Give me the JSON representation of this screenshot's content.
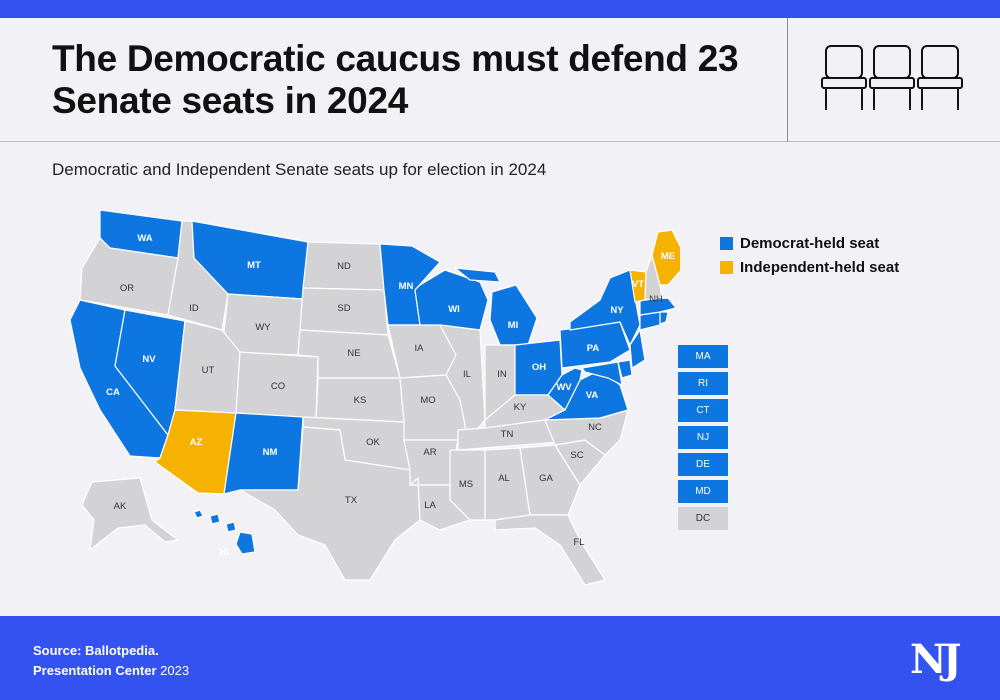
{
  "header": {
    "title": "The Democratic caucus must defend 23 Senate seats in 2024",
    "seats_icon": "chairs-icon"
  },
  "subtitle": "Democratic and Independent Senate seats up for election in 2024",
  "colors": {
    "democrat": "#0e76e0",
    "independent": "#f6b200",
    "none": "#d3d3d5",
    "border": "#ffffff",
    "accent": "#3452f0"
  },
  "legend": [
    {
      "label": "Democrat-held seat",
      "color": "#0e76e0"
    },
    {
      "label": "Independent-held seat",
      "color": "#f6b200"
    }
  ],
  "states": [
    {
      "abbr": "WA",
      "status": "democrat"
    },
    {
      "abbr": "OR",
      "status": "none"
    },
    {
      "abbr": "CA",
      "status": "democrat"
    },
    {
      "abbr": "ID",
      "status": "none"
    },
    {
      "abbr": "NV",
      "status": "democrat"
    },
    {
      "abbr": "MT",
      "status": "democrat"
    },
    {
      "abbr": "WY",
      "status": "none"
    },
    {
      "abbr": "UT",
      "status": "none"
    },
    {
      "abbr": "AZ",
      "status": "independent"
    },
    {
      "abbr": "CO",
      "status": "none"
    },
    {
      "abbr": "NM",
      "status": "democrat"
    },
    {
      "abbr": "ND",
      "status": "none"
    },
    {
      "abbr": "SD",
      "status": "none"
    },
    {
      "abbr": "NE",
      "status": "none"
    },
    {
      "abbr": "KS",
      "status": "none"
    },
    {
      "abbr": "OK",
      "status": "none"
    },
    {
      "abbr": "TX",
      "status": "none"
    },
    {
      "abbr": "MN",
      "status": "democrat"
    },
    {
      "abbr": "IA",
      "status": "none"
    },
    {
      "abbr": "MO",
      "status": "none"
    },
    {
      "abbr": "AR",
      "status": "none"
    },
    {
      "abbr": "LA",
      "status": "none"
    },
    {
      "abbr": "WI",
      "status": "democrat"
    },
    {
      "abbr": "IL",
      "status": "none"
    },
    {
      "abbr": "MI",
      "status": "democrat"
    },
    {
      "abbr": "IN",
      "status": "none"
    },
    {
      "abbr": "OH",
      "status": "democrat"
    },
    {
      "abbr": "KY",
      "status": "none"
    },
    {
      "abbr": "TN",
      "status": "none"
    },
    {
      "abbr": "MS",
      "status": "none"
    },
    {
      "abbr": "AL",
      "status": "none"
    },
    {
      "abbr": "GA",
      "status": "none"
    },
    {
      "abbr": "FL",
      "status": "none"
    },
    {
      "abbr": "SC",
      "status": "none"
    },
    {
      "abbr": "NC",
      "status": "none"
    },
    {
      "abbr": "VA",
      "status": "democrat"
    },
    {
      "abbr": "WV",
      "status": "democrat"
    },
    {
      "abbr": "PA",
      "status": "democrat"
    },
    {
      "abbr": "NY",
      "status": "democrat"
    },
    {
      "abbr": "VT",
      "status": "independent"
    },
    {
      "abbr": "NH",
      "status": "none"
    },
    {
      "abbr": "ME",
      "status": "independent"
    },
    {
      "abbr": "AK",
      "status": "none"
    },
    {
      "abbr": "HI",
      "status": "democrat"
    }
  ],
  "small_states": [
    {
      "abbr": "MA",
      "status": "democrat"
    },
    {
      "abbr": "RI",
      "status": "democrat"
    },
    {
      "abbr": "CT",
      "status": "democrat"
    },
    {
      "abbr": "NJ",
      "status": "democrat"
    },
    {
      "abbr": "DE",
      "status": "democrat"
    },
    {
      "abbr": "MD",
      "status": "democrat"
    },
    {
      "abbr": "DC",
      "status": "none"
    }
  ],
  "footer": {
    "source": "Source: Ballotpedia.",
    "center_bold": "Presentation Center",
    "center_year": " 2023",
    "logo": "NJ"
  }
}
